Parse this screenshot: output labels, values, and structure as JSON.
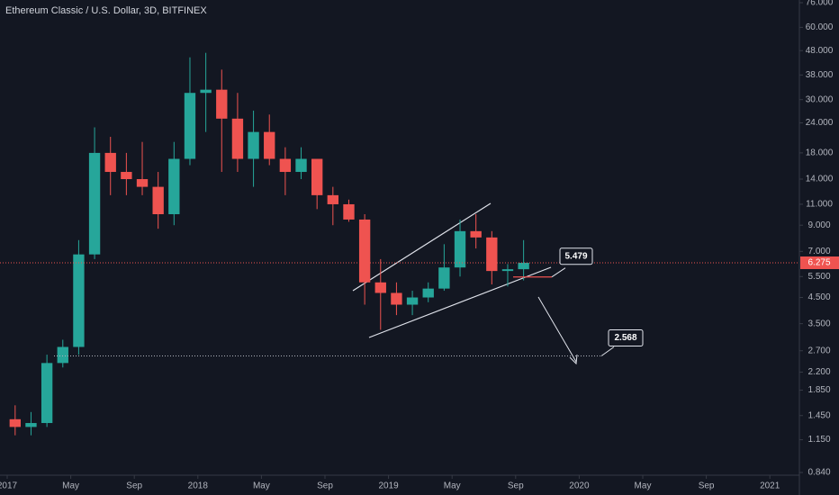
{
  "chart_data": {
    "type": "candlestick",
    "title": "Ethereum Classic / U.S. Dollar, 3D, BITFINEX",
    "log_scale": true,
    "up_color": "#26a69a",
    "down_color": "#ef5350",
    "x": [
      "2017-01",
      "2017-02",
      "2017-03",
      "2017-04",
      "2017-05",
      "2017-06",
      "2017-07",
      "2017-08",
      "2017-09",
      "2017-10",
      "2017-11",
      "2017-12",
      "2018-01",
      "2018-02",
      "2018-03",
      "2018-04",
      "2018-05",
      "2018-06",
      "2018-07",
      "2018-08",
      "2018-09",
      "2018-10",
      "2018-11",
      "2018-12",
      "2019-01",
      "2019-02",
      "2019-03",
      "2019-04",
      "2019-05",
      "2019-06",
      "2019-07",
      "2019-08",
      "2019-09"
    ],
    "open": [
      1.4,
      1.3,
      1.35,
      2.4,
      2.8,
      6.8,
      18,
      15,
      14,
      13,
      10,
      17,
      32,
      33,
      25,
      17,
      22,
      17,
      15,
      17,
      12,
      11,
      9.5,
      5.2,
      4.7,
      4.2,
      4.5,
      4.9,
      6.0,
      8.5,
      8.0,
      5.8,
      5.9
    ],
    "high": [
      1.6,
      1.5,
      2.6,
      3.0,
      7.8,
      23,
      21,
      18,
      20,
      15,
      20,
      45,
      47,
      40,
      32,
      27,
      26,
      19,
      19,
      17,
      13,
      11.5,
      10,
      6.5,
      5.2,
      4.8,
      5.2,
      7.5,
      9.5,
      10.0,
      8.5,
      6.2,
      7.8
    ],
    "low": [
      1.2,
      1.2,
      1.3,
      2.3,
      2.6,
      6.5,
      12,
      12,
      12,
      8.7,
      9,
      16,
      22,
      15,
      15,
      13,
      16,
      12,
      14,
      10.5,
      9,
      9.3,
      4.2,
      3.3,
      3.8,
      3.8,
      4.3,
      4.8,
      5.5,
      7.2,
      5.1,
      5.0,
      5.3
    ],
    "close": [
      1.3,
      1.35,
      2.4,
      2.8,
      6.8,
      18,
      15,
      14,
      13,
      10,
      17,
      32,
      33,
      25,
      17,
      22,
      17,
      15,
      17,
      12,
      11,
      9.5,
      5.2,
      4.7,
      4.2,
      4.5,
      4.9,
      6.0,
      8.5,
      8.0,
      5.8,
      5.9,
      6.275
    ],
    "last_price": 6.275,
    "annotations": [
      5.479,
      2.568
    ],
    "ylim": [
      0.84,
      76
    ],
    "yticks": [
      {
        "value": 0.84,
        "label": "0.840"
      },
      {
        "value": 1.15,
        "label": "1.150"
      },
      {
        "value": 1.45,
        "label": "1.450"
      },
      {
        "value": 1.85,
        "label": "1.850"
      },
      {
        "value": 2.2,
        "label": "2.200"
      },
      {
        "value": 2.7,
        "label": "2.700"
      },
      {
        "value": 3.5,
        "label": "3.500"
      },
      {
        "value": 4.5,
        "label": "4.500"
      },
      {
        "value": 5.5,
        "label": "5.500"
      },
      {
        "value": 7,
        "label": "7.000"
      },
      {
        "value": 9,
        "label": "9.000"
      },
      {
        "value": 11,
        "label": "11.000"
      },
      {
        "value": 14,
        "label": "14.000"
      },
      {
        "value": 18,
        "label": "18.000"
      },
      {
        "value": 24,
        "label": "24.000"
      },
      {
        "value": 30,
        "label": "30.000"
      },
      {
        "value": 38,
        "label": "38.000"
      },
      {
        "value": 48,
        "label": "48.000"
      },
      {
        "value": 60,
        "label": "60.000"
      },
      {
        "value": 76,
        "label": "76.000"
      }
    ],
    "xticks": [
      {
        "value": "2017-01",
        "label": "2017"
      },
      {
        "value": "2017-05",
        "label": "May"
      },
      {
        "value": "2017-09",
        "label": "Sep"
      },
      {
        "value": "2018-01",
        "label": "2018"
      },
      {
        "value": "2018-05",
        "label": "May"
      },
      {
        "value": "2018-09",
        "label": "Sep"
      },
      {
        "value": "2019-01",
        "label": "2019"
      },
      {
        "value": "2019-05",
        "label": "May"
      },
      {
        "value": "2019-09",
        "label": "Sep"
      },
      {
        "value": "2020-01",
        "label": "2020"
      },
      {
        "value": "2020-05",
        "label": "May"
      },
      {
        "value": "2020-09",
        "label": "Sep"
      },
      {
        "value": "2021-01",
        "label": "2021"
      }
    ]
  }
}
